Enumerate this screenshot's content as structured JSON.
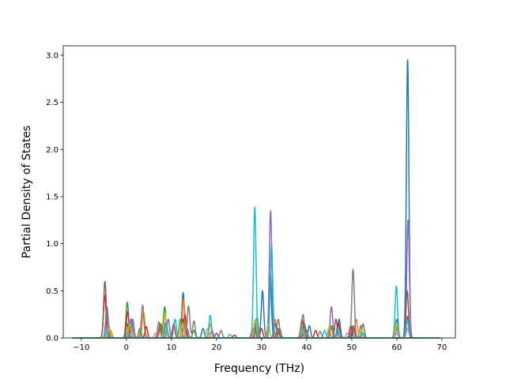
{
  "chart_data": {
    "type": "line",
    "title": "",
    "xlabel": "Frequency (THz)",
    "ylabel": "Partial Density of States",
    "xlim": [
      -14.0,
      73.0
    ],
    "ylim": [
      0.0,
      3.1
    ],
    "xticks": [
      -10,
      0,
      10,
      20,
      30,
      40,
      50,
      60,
      70
    ],
    "yticks": [
      0.0,
      0.5,
      1.0,
      1.5,
      2.0,
      2.5,
      3.0
    ],
    "xtick_labels": [
      "−10",
      "0",
      "10",
      "20",
      "30",
      "40",
      "50",
      "60",
      "70"
    ],
    "ytick_labels": [
      "0.0",
      "0.5",
      "1.0",
      "1.5",
      "2.0",
      "2.5",
      "3.0"
    ],
    "grid": false,
    "legend": "none",
    "x_range": [
      -12,
      69.5
    ],
    "line_width": 1.5,
    "series": [
      {
        "color": "#1f77b4",
        "peaks": [
          [
            -4.3,
            0.3
          ],
          [
            1.1,
            0.2
          ],
          [
            8.8,
            0.17
          ],
          [
            12.6,
            0.48
          ],
          [
            17.0,
            0.1
          ],
          [
            28.6,
            0.15
          ],
          [
            30.2,
            0.5
          ],
          [
            31.9,
            0.68
          ],
          [
            40.6,
            0.13
          ],
          [
            47.2,
            0.2
          ],
          [
            50.3,
            0.13
          ],
          [
            60.0,
            0.2
          ],
          [
            62.4,
            2.95
          ]
        ]
      },
      {
        "color": "#ff7f0e",
        "peaks": [
          [
            -3.5,
            0.08
          ],
          [
            0.5,
            0.12
          ],
          [
            3.8,
            0.28
          ],
          [
            7.7,
            0.15
          ],
          [
            12.7,
            0.4
          ],
          [
            18.6,
            0.15
          ],
          [
            28.0,
            0.1
          ],
          [
            33.0,
            0.2
          ],
          [
            39.0,
            0.12
          ],
          [
            45.0,
            0.1
          ],
          [
            50.0,
            0.08
          ],
          [
            51.0,
            0.2
          ],
          [
            59.8,
            0.15
          ]
        ]
      },
      {
        "color": "#2ca02c",
        "peaks": [
          [
            0.2,
            0.38
          ],
          [
            3.0,
            0.1
          ],
          [
            8.5,
            0.33
          ],
          [
            12.0,
            0.2
          ],
          [
            15.0,
            0.08
          ],
          [
            28.5,
            0.12
          ],
          [
            34.0,
            0.1
          ],
          [
            40.0,
            0.08
          ],
          [
            45.5,
            0.13
          ],
          [
            52.0,
            0.1
          ],
          [
            60.0,
            0.12
          ]
        ]
      },
      {
        "color": "#d62728",
        "peaks": [
          [
            -4.8,
            0.45
          ],
          [
            0.3,
            0.28
          ],
          [
            4.4,
            0.12
          ],
          [
            10.5,
            0.15
          ],
          [
            13.0,
            0.25
          ],
          [
            24.0,
            0.03
          ],
          [
            30.0,
            0.1
          ],
          [
            33.6,
            0.1
          ],
          [
            39.5,
            0.15
          ],
          [
            42.0,
            0.08
          ],
          [
            47.0,
            0.16
          ],
          [
            49.8,
            0.13
          ],
          [
            62.4,
            0.23
          ]
        ]
      },
      {
        "color": "#9467bd",
        "peaks": [
          [
            -4.3,
            0.15
          ],
          [
            1.4,
            0.2
          ],
          [
            9.3,
            0.2
          ],
          [
            13.5,
            0.1
          ],
          [
            19.0,
            0.08
          ],
          [
            28.8,
            0.12
          ],
          [
            32.0,
            1.35
          ],
          [
            38.8,
            0.1
          ],
          [
            45.5,
            0.33
          ],
          [
            52.0,
            0.13
          ],
          [
            62.5,
            1.25
          ]
        ]
      },
      {
        "color": "#8c564b",
        "peaks": [
          [
            -4.75,
            0.6
          ],
          [
            0.2,
            0.15
          ],
          [
            7.5,
            0.15
          ],
          [
            12.5,
            0.2
          ],
          [
            20.0,
            0.05
          ],
          [
            28.4,
            0.12
          ],
          [
            33.0,
            0.15
          ],
          [
            39.0,
            0.2
          ],
          [
            46.5,
            0.2
          ],
          [
            50.5,
            0.1
          ],
          [
            52.5,
            0.15
          ],
          [
            62.3,
            0.5
          ]
        ]
      },
      {
        "color": "#e377c2",
        "peaks": [
          [
            -4.0,
            0.15
          ],
          [
            1.2,
            0.08
          ],
          [
            6.5,
            0.05
          ],
          [
            12.8,
            0.1
          ],
          [
            18.3,
            0.05
          ],
          [
            28.0,
            0.05
          ],
          [
            33.0,
            0.05
          ],
          [
            40.0,
            0.05
          ],
          [
            45.0,
            0.05
          ],
          [
            49.0,
            0.05
          ],
          [
            60.0,
            0.05
          ],
          [
            62.4,
            0.1
          ]
        ]
      },
      {
        "color": "#7f7f7f",
        "peaks": [
          [
            -4.3,
            0.33
          ],
          [
            3.6,
            0.35
          ],
          [
            7.2,
            0.17
          ],
          [
            13.8,
            0.34
          ],
          [
            15.0,
            0.18
          ],
          [
            21.0,
            0.08
          ],
          [
            29.0,
            0.22
          ],
          [
            33.7,
            0.2
          ],
          [
            39.2,
            0.25
          ],
          [
            43.0,
            0.07
          ],
          [
            45.5,
            0.1
          ],
          [
            50.3,
            0.73
          ],
          [
            52.5,
            0.15
          ],
          [
            60.0,
            0.1
          ]
        ]
      },
      {
        "color": "#bcbd22",
        "peaks": [
          [
            -3.8,
            0.1
          ],
          [
            0.8,
            0.15
          ],
          [
            8.6,
            0.25
          ],
          [
            12.5,
            0.15
          ],
          [
            18.0,
            0.1
          ],
          [
            28.6,
            0.2
          ],
          [
            31.5,
            0.15
          ],
          [
            39.0,
            0.1
          ],
          [
            45.0,
            0.12
          ],
          [
            52.0,
            0.1
          ],
          [
            60.0,
            0.15
          ]
        ]
      },
      {
        "color": "#17becf",
        "peaks": [
          [
            -4.5,
            0.08
          ],
          [
            0.4,
            0.05
          ],
          [
            8.9,
            0.15
          ],
          [
            10.8,
            0.2
          ],
          [
            18.6,
            0.24
          ],
          [
            23.0,
            0.04
          ],
          [
            28.5,
            1.39
          ],
          [
            32.2,
            0.99
          ],
          [
            39.2,
            0.1
          ],
          [
            44.0,
            0.08
          ],
          [
            47.0,
            0.1
          ],
          [
            52.5,
            0.05
          ],
          [
            59.9,
            0.55
          ],
          [
            62.3,
            0.2
          ]
        ]
      }
    ]
  }
}
